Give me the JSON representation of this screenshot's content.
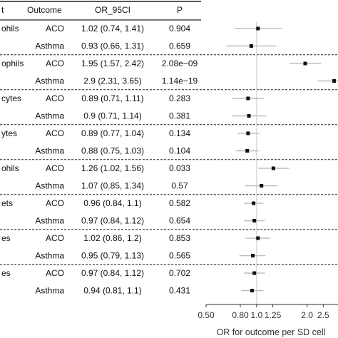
{
  "table": {
    "headers": {
      "exposure": "t",
      "outcome": "Outcome",
      "or_ci": "OR_95CI",
      "p": "P"
    },
    "groups": [
      {
        "label": "ohils",
        "rows": [
          {
            "outcome": "ACO",
            "or_ci": "1.02 (0.74, 1.41)",
            "p": "0.904"
          },
          {
            "outcome": "Asthma",
            "or_ci": "0.93 (0.66, 1.31)",
            "p": "0.659"
          }
        ]
      },
      {
        "label": "ophils",
        "rows": [
          {
            "outcome": "ACO",
            "or_ci": "1.95 (1.57, 2.42)",
            "p": "2.08e−09"
          },
          {
            "outcome": "Asthma",
            "or_ci": "2.9 (2.31, 3.65)",
            "p": "1.14e−19"
          }
        ]
      },
      {
        "label": "cytes",
        "rows": [
          {
            "outcome": "ACO",
            "or_ci": "0.89 (0.71, 1.11)",
            "p": "0.283"
          },
          {
            "outcome": "Asthma",
            "or_ci": "0.9 (0.71, 1.14)",
            "p": "0.381"
          }
        ]
      },
      {
        "label": "ytes",
        "rows": [
          {
            "outcome": "ACO",
            "or_ci": "0.89 (0.77, 1.04)",
            "p": "0.134"
          },
          {
            "outcome": "Asthma",
            "or_ci": "0.88 (0.75, 1.03)",
            "p": "0.104"
          }
        ]
      },
      {
        "label": "ohils",
        "rows": [
          {
            "outcome": "ACO",
            "or_ci": "1.26 (1.02, 1.56)",
            "p": "0.033"
          },
          {
            "outcome": "Asthma",
            "or_ci": "1.07 (0.85, 1.34)",
            "p": "0.57"
          }
        ]
      },
      {
        "label": "ets",
        "rows": [
          {
            "outcome": "ACO",
            "or_ci": "0.96 (0.84, 1.1)",
            "p": "0.582"
          },
          {
            "outcome": "Asthma",
            "or_ci": "0.97 (0.84, 1.12)",
            "p": "0.654"
          }
        ]
      },
      {
        "label": "es",
        "rows": [
          {
            "outcome": "ACO",
            "or_ci": "1.02 (0.86, 1.2)",
            "p": "0.853"
          },
          {
            "outcome": "Asthma",
            "or_ci": "0.95 (0.79, 1.13)",
            "p": "0.565"
          }
        ]
      },
      {
        "label": "es",
        "rows": [
          {
            "outcome": "ACO",
            "or_ci": "0.97 (0.84, 1.12)",
            "p": "0.702"
          },
          {
            "outcome": "Asthma",
            "or_ci": "0.94 (0.81, 1.1)",
            "p": "0.431"
          }
        ]
      }
    ]
  },
  "chart_data": {
    "type": "scatter",
    "subtype": "forest",
    "title": "",
    "xlabel": "OR for outcome per SD cell",
    "ylabel": "",
    "x_scale": "log",
    "xlim": [
      0.5,
      3.0
    ],
    "xticks": [
      0.5,
      0.8,
      1.0,
      1.25,
      2.0,
      2.5
    ],
    "xtick_labels": [
      "0.50",
      "0.80",
      "1.0",
      "1.25",
      "2.0",
      "2.5"
    ],
    "reference_line": 1.0,
    "points": [
      {
        "or": 1.02,
        "lo": 0.74,
        "hi": 1.41
      },
      {
        "or": 0.93,
        "lo": 0.66,
        "hi": 1.31
      },
      {
        "or": 1.95,
        "lo": 1.57,
        "hi": 2.42
      },
      {
        "or": 2.9,
        "lo": 2.31,
        "hi": 3.65
      },
      {
        "or": 0.89,
        "lo": 0.71,
        "hi": 1.11
      },
      {
        "or": 0.9,
        "lo": 0.71,
        "hi": 1.14
      },
      {
        "or": 0.89,
        "lo": 0.77,
        "hi": 1.04
      },
      {
        "or": 0.88,
        "lo": 0.75,
        "hi": 1.03
      },
      {
        "or": 1.26,
        "lo": 1.02,
        "hi": 1.56
      },
      {
        "or": 1.07,
        "lo": 0.85,
        "hi": 1.34
      },
      {
        "or": 0.96,
        "lo": 0.84,
        "lo_note": "",
        "hi": 1.1
      },
      {
        "or": 0.97,
        "lo": 0.84,
        "hi": 1.12
      },
      {
        "or": 1.02,
        "lo": 0.86,
        "hi": 1.2
      },
      {
        "or": 0.95,
        "lo": 0.79,
        "hi": 1.13
      },
      {
        "or": 0.97,
        "lo": 0.84,
        "hi": 1.12
      },
      {
        "or": 0.94,
        "lo": 0.81,
        "hi": 1.1
      }
    ],
    "colors": {
      "point": "#111111",
      "ci": "#bdbdbd",
      "reference": "#d9d9d9",
      "axis": "#333333",
      "divider": "#222222"
    }
  }
}
